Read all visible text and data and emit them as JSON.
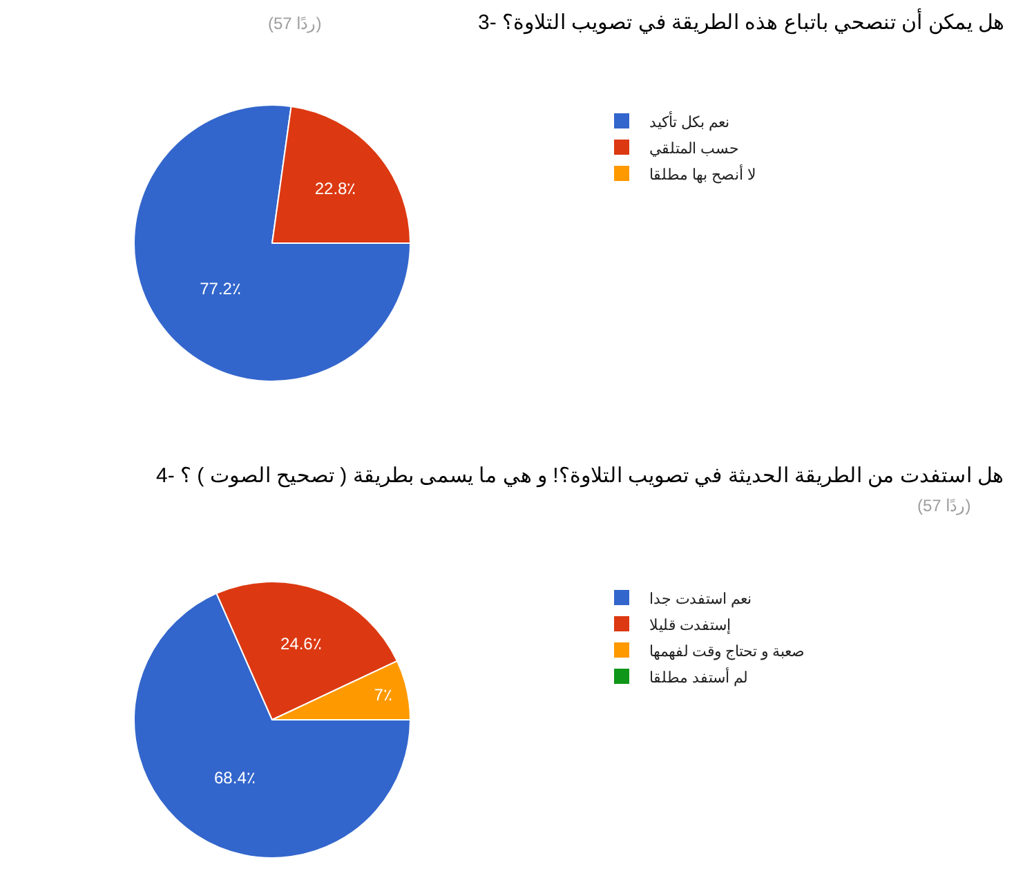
{
  "chart_data": [
    {
      "type": "pie",
      "title": "3- هل يمكن أن تنصحي باتباع هذه الطريقة في تصويب التلاوة؟",
      "subtitle": "(57 ردًا)",
      "categories": [
        "نعم بكل تأكيد",
        "حسب المتلقي",
        "لا أنصح بها مطلقا"
      ],
      "values": [
        77.2,
        22.8,
        0
      ],
      "colors": [
        "#3366cc",
        "#dc3912",
        "#ff9900"
      ],
      "value_labels": [
        "77.2٪",
        "22.8٪",
        null
      ],
      "legend": "right"
    },
    {
      "type": "pie",
      "title": "4- هل استفدت من الطريقة الحديثة في تصويب التلاوة؟! و هي ما يسمى بطريقة ( تصحيح الصوت ) ؟",
      "subtitle": "(57 ردًا)",
      "categories": [
        "نعم استفدت جدا",
        "إستفدت قليلا",
        "صعبة و تحتاج وقت لفهمها",
        "لم أستفد مطلقا"
      ],
      "values": [
        68.4,
        24.6,
        7,
        0
      ],
      "colors": [
        "#3366cc",
        "#dc3912",
        "#ff9900",
        "#109618"
      ],
      "value_labels": [
        "68.4٪",
        "24.6٪",
        "7٪",
        null
      ],
      "legend": "right"
    }
  ]
}
